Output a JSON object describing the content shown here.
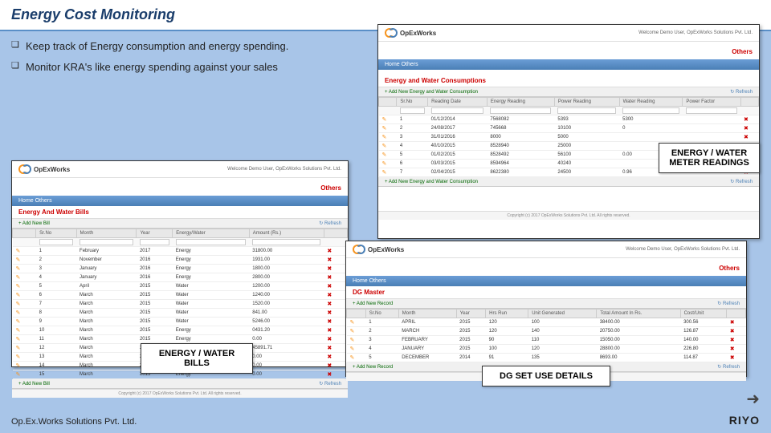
{
  "title": "Energy Cost Monitoring",
  "bullets": [
    "Keep track of Energy consumption and energy spending.",
    "Monitor KRA's like energy spending against your sales"
  ],
  "labels": {
    "readings": "ENERGY / WATER METER READINGS",
    "bills": "ENERGY / WATER BILLS",
    "dg": "DG SET USE DETAILS"
  },
  "footer": "Op.Ex.Works Solutions Pvt. Ltd.",
  "brand": "RIYO",
  "common": {
    "logo": "OpExWorks",
    "welcome": "Welcome Demo User, OpExWorks Solutions Pvt. Ltd.",
    "others": "Others",
    "nav": "Home   Others",
    "refresh": "↻ Refresh",
    "copyright": "Copyright (c) 2017 OpExWorks Solutions Pvt. Ltd. All rights reserved."
  },
  "bills": {
    "title": "Energy And Water Bills",
    "add": "+ Add New Bill",
    "cols": [
      "Sr.No",
      "Month",
      "Year",
      "Energy/Water",
      "Amount (Rs.)"
    ],
    "rows": [
      [
        "1",
        "February",
        "2017",
        "Energy",
        "31800.00"
      ],
      [
        "2",
        "November",
        "2016",
        "Energy",
        "1931.00"
      ],
      [
        "3",
        "January",
        "2016",
        "Energy",
        "1800.00"
      ],
      [
        "4",
        "January",
        "2016",
        "Energy",
        "2800.00"
      ],
      [
        "5",
        "April",
        "2015",
        "Water",
        "1200.00"
      ],
      [
        "6",
        "March",
        "2015",
        "Water",
        "1240.00"
      ],
      [
        "7",
        "March",
        "2015",
        "Water",
        "1520.00"
      ],
      [
        "8",
        "March",
        "2015",
        "Water",
        "841.00"
      ],
      [
        "9",
        "March",
        "2015",
        "Water",
        "5246.00"
      ],
      [
        "10",
        "March",
        "2015",
        "Energy",
        "0431.20"
      ],
      [
        "11",
        "March",
        "2015",
        "Energy",
        "0.00"
      ],
      [
        "12",
        "March",
        "2015",
        "Energy",
        "45891.71"
      ],
      [
        "13",
        "March",
        "2015",
        "Energy",
        "0.00"
      ],
      [
        "14",
        "March",
        "2015",
        "Energy",
        "0.00"
      ],
      [
        "15",
        "March",
        "2015",
        "Energy",
        "0.00"
      ]
    ]
  },
  "readings": {
    "title": "Energy and Water Consumptions",
    "add": "+ Add New Energy and Water Consumption",
    "cols": [
      "Sr.No",
      "Reading Date",
      "Energy Reading",
      "Power Reading",
      "Water Reading",
      "Power Factor"
    ],
    "rows": [
      [
        "1",
        "01/12/2014",
        "7568082",
        "5393",
        "5300",
        ""
      ],
      [
        "2",
        "24/08/2017",
        "745668",
        "10100",
        "0",
        ""
      ],
      [
        "3",
        "31/01/2016",
        "8000",
        "5000",
        "",
        ""
      ],
      [
        "4",
        "40/10/2015",
        "8528940",
        "25000",
        "",
        ""
      ],
      [
        "5",
        "01/02/2015",
        "8528492",
        "56100",
        "0.00",
        ""
      ],
      [
        "6",
        "03/03/2015",
        "8594964",
        "40240",
        "",
        ""
      ],
      [
        "7",
        "02/04/2015",
        "8622380",
        "24500",
        "0.96",
        ""
      ]
    ],
    "add2": "+ Add New Energy and Water Consumption"
  },
  "dg": {
    "title": "DG Master",
    "add": "+ Add New Record",
    "cols": [
      "Sr.No",
      "Month",
      "Year",
      "Hrs Run",
      "Unit Generated",
      "Total Amount In Rs.",
      "Cost/Unit"
    ],
    "rows": [
      [
        "1",
        "APRIL",
        "2015",
        "120",
        "100",
        "38400.00",
        "300.56"
      ],
      [
        "2",
        "MARCH",
        "2015",
        "120",
        "140",
        "20750.00",
        "126.87"
      ],
      [
        "3",
        "FEBRUARY",
        "2015",
        "90",
        "110",
        "15050.00",
        "140.00"
      ],
      [
        "4",
        "JANUARY",
        "2015",
        "100",
        "120",
        "28800.00",
        "226.80"
      ],
      [
        "5",
        "DECEMBER",
        "2014",
        "91",
        "135",
        "8693.00",
        "114.87"
      ]
    ],
    "add2": "+ Add New Record"
  }
}
